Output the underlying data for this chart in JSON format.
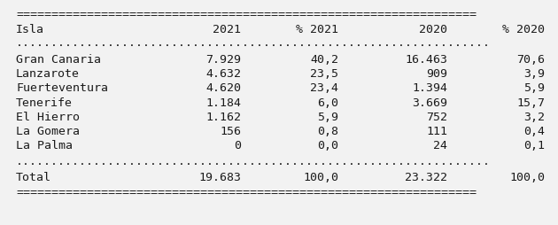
{
  "headers": [
    "Isla",
    "2021",
    "% 2021",
    "2020",
    "% 2020"
  ],
  "rows": [
    [
      "Gran Canaria",
      "7.929",
      "40,2",
      "16.463",
      "70,6"
    ],
    [
      "Lanzarote",
      "4.632",
      "23,5",
      "909",
      "3,9"
    ],
    [
      "Fuerteventura",
      "4.620",
      "23,4",
      "1.394",
      "5,9"
    ],
    [
      "Tenerife",
      "1.184",
      "6,0",
      "3.669",
      "15,7"
    ],
    [
      "El Hierro",
      "1.162",
      "5,9",
      "752",
      "3,2"
    ],
    [
      "La Gomera",
      "156",
      "0,8",
      "111",
      "0,4"
    ],
    [
      "La Palma",
      "0",
      "0,0",
      "24",
      "0,1"
    ]
  ],
  "total_row": [
    "Total",
    "19.683",
    "100,0",
    "23.322",
    "100,0"
  ],
  "bg_color": "#f2f2f2",
  "font_size": 9.5,
  "eq_line": "=================================================================",
  "dot_line": "..................................................................."
}
